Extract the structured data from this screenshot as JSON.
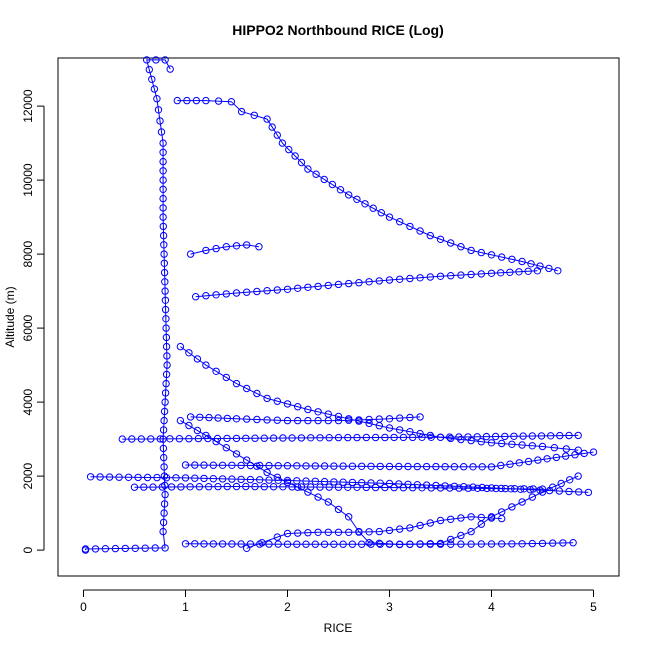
{
  "chart_data": {
    "type": "scatter",
    "title": "HIPPO2 Northbound RICE (Log)",
    "xlabel": "RICE",
    "ylabel": "Altitude (m)",
    "xlim": [
      -0.25,
      5.25
    ],
    "ylim": [
      -700,
      13300
    ],
    "xticks": [
      0,
      1,
      2,
      3,
      4,
      5
    ],
    "yticks": [
      0,
      2000,
      4000,
      6000,
      8000,
      10000,
      12000
    ],
    "grid": false,
    "legend": "none",
    "marker": "open-circle",
    "connected": true,
    "color": "#0000ff",
    "series": [
      {
        "points": [
          [
            0.02,
            0
          ],
          [
            0.02,
            30
          ],
          [
            0.8,
            60
          ],
          [
            0.78,
            500
          ],
          [
            0.8,
            1500
          ],
          [
            0.78,
            3000
          ],
          [
            0.82,
            5000
          ],
          [
            0.8,
            7000
          ],
          [
            0.78,
            9000
          ],
          [
            0.78,
            11000
          ],
          [
            0.72,
            12200
          ],
          [
            0.62,
            13250
          ],
          [
            0.8,
            13250
          ],
          [
            0.85,
            13000
          ]
        ]
      },
      {
        "points": [
          [
            0.92,
            12150
          ],
          [
            1.2,
            12150
          ],
          [
            1.45,
            12120
          ],
          [
            1.55,
            11850
          ],
          [
            1.8,
            11650
          ],
          [
            1.95,
            11000
          ],
          [
            2.2,
            10300
          ],
          [
            2.6,
            9600
          ],
          [
            3.0,
            9000
          ],
          [
            3.4,
            8500
          ],
          [
            3.8,
            8100
          ],
          [
            4.3,
            7800
          ],
          [
            4.65,
            7550
          ]
        ]
      },
      {
        "points": [
          [
            1.1,
            6850
          ],
          [
            1.5,
            6950
          ],
          [
            2.0,
            7050
          ],
          [
            2.5,
            7180
          ],
          [
            3.0,
            7300
          ],
          [
            3.5,
            7400
          ],
          [
            4.0,
            7480
          ],
          [
            4.45,
            7550
          ]
        ]
      },
      {
        "points": [
          [
            0.95,
            5500
          ],
          [
            1.2,
            5000
          ],
          [
            1.5,
            4500
          ],
          [
            1.8,
            4100
          ],
          [
            2.2,
            3800
          ],
          [
            2.6,
            3550
          ],
          [
            3.0,
            3300
          ],
          [
            3.5,
            3050
          ],
          [
            4.0,
            2900
          ],
          [
            4.5,
            2800
          ],
          [
            4.85,
            2700
          ]
        ]
      },
      {
        "points": [
          [
            0.95,
            3500
          ],
          [
            1.2,
            3100
          ],
          [
            1.5,
            2600
          ],
          [
            1.8,
            2100
          ],
          [
            2.1,
            1700
          ],
          [
            2.4,
            1300
          ],
          [
            2.6,
            900
          ],
          [
            2.7,
            500
          ],
          [
            2.8,
            200
          ],
          [
            3.1,
            150
          ],
          [
            3.5,
            180
          ],
          [
            3.8,
            500
          ],
          [
            4.0,
            900
          ],
          [
            4.3,
            1300
          ],
          [
            4.6,
            1700
          ],
          [
            4.85,
            2000
          ]
        ]
      },
      {
        "points": [
          [
            1.6,
            50
          ],
          [
            1.75,
            200
          ],
          [
            1.9,
            350
          ],
          [
            2.0,
            450
          ],
          [
            2.3,
            480
          ],
          [
            2.6,
            480
          ],
          [
            2.9,
            500
          ],
          [
            3.2,
            600
          ],
          [
            3.5,
            800
          ],
          [
            3.8,
            900
          ],
          [
            4.1,
            850
          ]
        ]
      },
      {
        "points": [
          [
            0.38,
            3000
          ],
          [
            1.5,
            3020
          ],
          [
            2.5,
            3040
          ],
          [
            3.5,
            3050
          ],
          [
            4.85,
            3100
          ]
        ]
      },
      {
        "points": [
          [
            0.07,
            1980
          ],
          [
            1.0,
            1950
          ],
          [
            2.0,
            1880
          ],
          [
            3.0,
            1800
          ],
          [
            4.0,
            1680
          ],
          [
            4.95,
            1560
          ]
        ]
      },
      {
        "points": [
          [
            0.5,
            1700
          ],
          [
            1.5,
            1720
          ],
          [
            2.5,
            1700
          ],
          [
            3.5,
            1680
          ],
          [
            4.5,
            1650
          ]
        ]
      },
      {
        "points": [
          [
            1.0,
            2300
          ],
          [
            2.0,
            2280
          ],
          [
            3.0,
            2260
          ],
          [
            4.0,
            2250
          ],
          [
            5.0,
            2650
          ]
        ]
      },
      {
        "points": [
          [
            1.0,
            170
          ],
          [
            2.0,
            160
          ],
          [
            3.0,
            160
          ],
          [
            3.6,
            160
          ],
          [
            4.3,
            170
          ],
          [
            4.8,
            200
          ]
        ]
      },
      {
        "points": [
          [
            1.05,
            8000
          ],
          [
            1.2,
            8100
          ],
          [
            1.4,
            8200
          ],
          [
            1.6,
            8250
          ],
          [
            1.72,
            8200
          ]
        ]
      },
      {
        "points": [
          [
            1.05,
            3600
          ],
          [
            1.5,
            3550
          ],
          [
            2.0,
            3500
          ],
          [
            2.5,
            3500
          ],
          [
            3.0,
            3550
          ],
          [
            3.3,
            3600
          ]
        ]
      }
    ]
  }
}
